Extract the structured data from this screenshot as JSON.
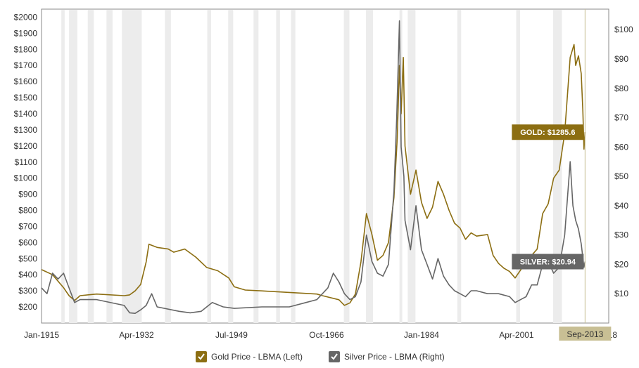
{
  "chart_data": {
    "type": "line",
    "x_ticks": [
      "Jan-1915",
      "Apr-1932",
      "Jul-1949",
      "Oct-1966",
      "Jan-1984",
      "Apr-2001",
      "Sep-2013",
      "2018"
    ],
    "y_left_ticks": [
      "$200",
      "$300",
      "$400",
      "$500",
      "$600",
      "$700",
      "$800",
      "$900",
      "$1000",
      "$1100",
      "$1200",
      "$1300",
      "$1400",
      "$1500",
      "$1600",
      "$1700",
      "$1800",
      "$1900",
      "$2000"
    ],
    "y_right_ticks": [
      "$10",
      "$20",
      "$30",
      "$40",
      "$50",
      "$60",
      "$70",
      "$80",
      "$90",
      "$100"
    ],
    "ylim_left": [
      100,
      2050
    ],
    "ylim_right": [
      0,
      107
    ],
    "xlim": [
      1915.0,
      2018.0
    ],
    "grid": false,
    "recessions": [
      [
        1918.6,
        1919.2
      ],
      [
        1920.0,
        1921.5
      ],
      [
        1923.4,
        1924.5
      ],
      [
        1926.8,
        1927.9
      ],
      [
        1929.6,
        1933.2
      ],
      [
        1937.4,
        1938.5
      ],
      [
        1945.1,
        1945.8
      ],
      [
        1948.9,
        1949.8
      ],
      [
        1953.5,
        1954.4
      ],
      [
        1957.6,
        1958.3
      ],
      [
        1960.3,
        1961.1
      ],
      [
        1969.9,
        1970.9
      ],
      [
        1973.9,
        1975.2
      ],
      [
        1980.0,
        1980.5
      ],
      [
        1981.5,
        1982.9
      ],
      [
        1990.5,
        1991.2
      ],
      [
        2001.2,
        2001.9
      ],
      [
        2007.9,
        2009.5
      ]
    ],
    "series": [
      {
        "name": "Gold Price - LBMA (Left)",
        "axis": "left",
        "color": "#8c6e12",
        "points": [
          [
            1915,
            432
          ],
          [
            1917,
            400
          ],
          [
            1919,
            320
          ],
          [
            1920,
            270
          ],
          [
            1921,
            240
          ],
          [
            1922,
            270
          ],
          [
            1925,
            280
          ],
          [
            1930,
            270
          ],
          [
            1931,
            275
          ],
          [
            1932,
            300
          ],
          [
            1933,
            340
          ],
          [
            1934,
            480
          ],
          [
            1934.5,
            590
          ],
          [
            1936,
            570
          ],
          [
            1938,
            560
          ],
          [
            1939,
            540
          ],
          [
            1941,
            560
          ],
          [
            1943,
            510
          ],
          [
            1945,
            445
          ],
          [
            1947,
            425
          ],
          [
            1949,
            380
          ],
          [
            1950,
            325
          ],
          [
            1952,
            305
          ],
          [
            1955,
            300
          ],
          [
            1960,
            290
          ],
          [
            1965,
            280
          ],
          [
            1966,
            270
          ],
          [
            1969,
            245
          ],
          [
            1970,
            210
          ],
          [
            1971,
            225
          ],
          [
            1972,
            280
          ],
          [
            1973,
            480
          ],
          [
            1974,
            780
          ],
          [
            1975,
            650
          ],
          [
            1976,
            490
          ],
          [
            1977,
            520
          ],
          [
            1978,
            600
          ],
          [
            1979,
            880
          ],
          [
            1979.6,
            1250
          ],
          [
            1980.0,
            1700
          ],
          [
            1980.3,
            1400
          ],
          [
            1980.7,
            1750
          ],
          [
            1981,
            1200
          ],
          [
            1982,
            900
          ],
          [
            1983,
            1050
          ],
          [
            1984,
            850
          ],
          [
            1985,
            750
          ],
          [
            1986,
            820
          ],
          [
            1987,
            980
          ],
          [
            1988,
            900
          ],
          [
            1989,
            800
          ],
          [
            1990,
            720
          ],
          [
            1991,
            690
          ],
          [
            1992,
            620
          ],
          [
            1993,
            660
          ],
          [
            1994,
            640
          ],
          [
            1996,
            650
          ],
          [
            1997,
            520
          ],
          [
            1998,
            470
          ],
          [
            1999,
            440
          ],
          [
            2000,
            420
          ],
          [
            2001,
            380
          ],
          [
            2002,
            430
          ],
          [
            2003,
            480
          ],
          [
            2004,
            520
          ],
          [
            2005,
            560
          ],
          [
            2006,
            780
          ],
          [
            2007,
            840
          ],
          [
            2008,
            1000
          ],
          [
            2009,
            1050
          ],
          [
            2010,
            1280
          ],
          [
            2011,
            1750
          ],
          [
            2011.7,
            1830
          ],
          [
            2012,
            1700
          ],
          [
            2012.5,
            1760
          ],
          [
            2013.0,
            1650
          ],
          [
            2013.3,
            1420
          ],
          [
            2013.5,
            1180
          ],
          [
            2013.7,
            1285.6
          ]
        ]
      },
      {
        "name": "Silver Price - LBMA (Right)",
        "axis": "right",
        "color": "#666666",
        "points": [
          [
            1915,
            12
          ],
          [
            1916,
            10
          ],
          [
            1917,
            17
          ],
          [
            1918,
            15
          ],
          [
            1919,
            17
          ],
          [
            1920,
            12
          ],
          [
            1921,
            7
          ],
          [
            1922,
            8
          ],
          [
            1925,
            8
          ],
          [
            1930,
            6
          ],
          [
            1931,
            3.5
          ],
          [
            1932,
            3.3
          ],
          [
            1933,
            4.5
          ],
          [
            1934,
            6
          ],
          [
            1935,
            10
          ],
          [
            1936,
            5.5
          ],
          [
            1940,
            4
          ],
          [
            1942,
            3.5
          ],
          [
            1944,
            4
          ],
          [
            1946,
            7
          ],
          [
            1948,
            5.5
          ],
          [
            1950,
            5
          ],
          [
            1955,
            5.5
          ],
          [
            1960,
            5.5
          ],
          [
            1963,
            7
          ],
          [
            1965,
            8
          ],
          [
            1967,
            12
          ],
          [
            1968,
            17
          ],
          [
            1969,
            14
          ],
          [
            1970,
            10
          ],
          [
            1971,
            8
          ],
          [
            1972,
            9
          ],
          [
            1973,
            14
          ],
          [
            1974,
            30
          ],
          [
            1975,
            21
          ],
          [
            1976,
            17
          ],
          [
            1977,
            16
          ],
          [
            1978,
            20
          ],
          [
            1979,
            45
          ],
          [
            1979.5,
            70
          ],
          [
            1980.0,
            103
          ],
          [
            1980.3,
            60
          ],
          [
            1980.8,
            50
          ],
          [
            1981,
            35
          ],
          [
            1982,
            25
          ],
          [
            1983,
            40
          ],
          [
            1984,
            25
          ],
          [
            1985,
            20
          ],
          [
            1986,
            15
          ],
          [
            1987,
            22
          ],
          [
            1988,
            16
          ],
          [
            1989,
            13
          ],
          [
            1990,
            11
          ],
          [
            1991,
            10
          ],
          [
            1992,
            9
          ],
          [
            1993,
            11
          ],
          [
            1994,
            11
          ],
          [
            1996,
            10
          ],
          [
            1998,
            10
          ],
          [
            2000,
            9
          ],
          [
            2001,
            7
          ],
          [
            2002,
            8
          ],
          [
            2003,
            9
          ],
          [
            2004,
            13
          ],
          [
            2005,
            13
          ],
          [
            2006,
            20
          ],
          [
            2007,
            21
          ],
          [
            2008,
            17
          ],
          [
            2009,
            19
          ],
          [
            2010,
            30
          ],
          [
            2011,
            55
          ],
          [
            2011.5,
            40
          ],
          [
            2012,
            35
          ],
          [
            2012.5,
            32
          ],
          [
            2013.0,
            27
          ],
          [
            2013.5,
            19
          ],
          [
            2013.7,
            20.94
          ]
        ]
      }
    ],
    "labels": {
      "gold": "GOLD: $1285.6",
      "silver": "SILVER: $20.94"
    },
    "highlight": "Sep-2013"
  },
  "legend": [
    {
      "label": "Gold Price - LBMA (Left)",
      "color": "#8c6e12",
      "checked": true
    },
    {
      "label": "Silver Price - LBMA (Right)",
      "color": "#666666",
      "checked": true
    }
  ]
}
